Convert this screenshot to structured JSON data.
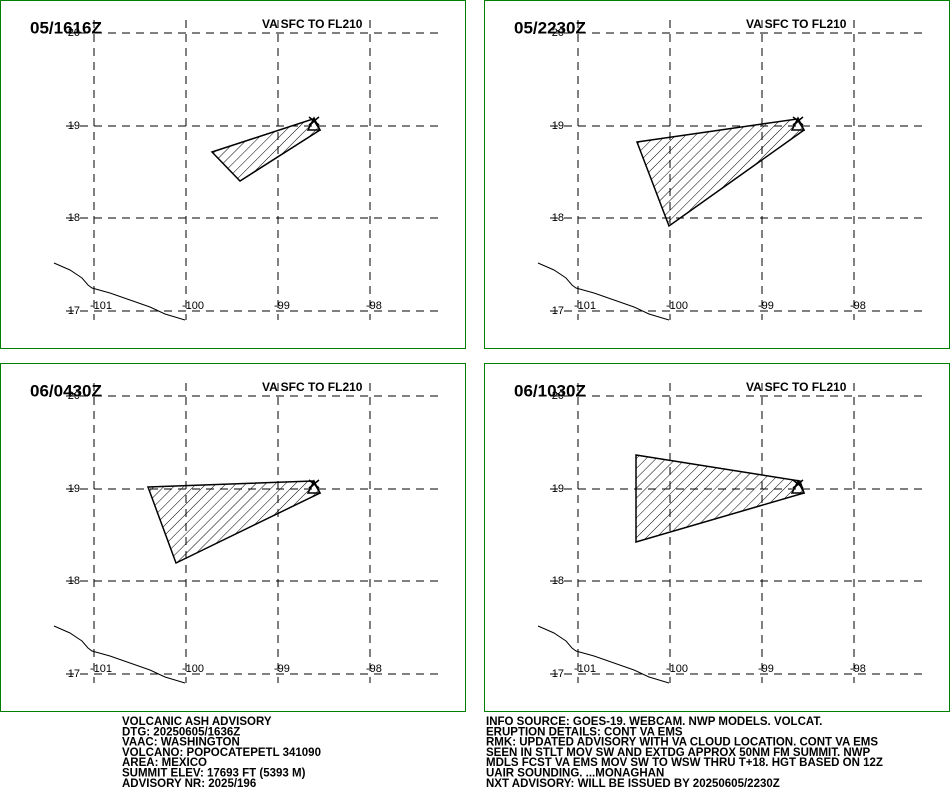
{
  "panels": [
    {
      "time": "05/1616Z",
      "level": "VA SFC TO FL210",
      "lat_labels": [
        "20",
        "19",
        "18",
        "17"
      ],
      "lon_labels": [
        "-101",
        "-100",
        "-99",
        "-98"
      ]
    },
    {
      "time": "05/2230Z",
      "level": "VA SFC TO FL210",
      "lat_labels": [
        "20",
        "19",
        "18",
        "17"
      ],
      "lon_labels": [
        "-101",
        "-100",
        "-99",
        "-98"
      ]
    },
    {
      "time": "06/0430Z",
      "level": "VA SFC TO FL210",
      "lat_labels": [
        "20",
        "19",
        "18",
        "17"
      ],
      "lon_labels": [
        "-101",
        "-100",
        "-99",
        "-98"
      ]
    },
    {
      "time": "06/1030Z",
      "level": "VA SFC TO FL210",
      "lat_labels": [
        "20",
        "19",
        "18",
        "17"
      ],
      "lon_labels": [
        "-101",
        "-100",
        "-99",
        "-98"
      ]
    }
  ],
  "advisory_left": [
    "VOLCANIC ASH ADVISORY",
    "DTG: 20250605/1636Z",
    "VAAC: WASHINGTON",
    "VOLCANO: POPOCATEPETL 341090",
    "AREA: MEXICO",
    "SUMMIT ELEV: 17693 FT (5393 M)",
    "ADVISORY NR: 2025/196"
  ],
  "advisory_right": [
    "INFO SOURCE: GOES-19. WEBCAM. NWP MODELS. VOLCAT.",
    "ERUPTION DETAILS: CONT VA EMS",
    "RMK: UPDATED ADVISORY WITH VA CLOUD LOCATION. CONT VA EMS",
    "SEEN IN STLT MOV SW AND EXTDG APPROX 50NM FM SUMMIT. NWP",
    "MDLS FCST VA EMS MOV SW TO WSW THRU T+18. HGT BASED ON 12Z",
    "UAIR SOUNDING. ...MONAGHAN",
    "NXT ADVISORY: WILL BE ISSUED BY 20250605/2230Z"
  ]
}
